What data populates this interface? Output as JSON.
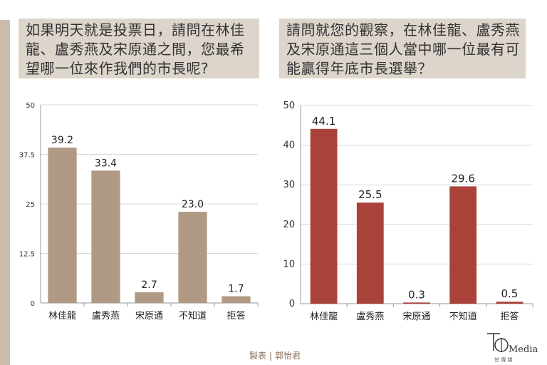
{
  "questions": {
    "q1": "如果明天就是投票日，請問在林佳龍、盧秀燕及宋原通之間，您最希望哪一位來作我們的市長呢?",
    "q2": "請問就您的觀察，在林佳龍、盧秀燕及宋原通這三個人當中哪一位最有可能贏得年底市長選舉？"
  },
  "chart_data": [
    {
      "type": "bar",
      "categories": [
        "林佳龍",
        "盧秀燕",
        "宋原通",
        "不知道",
        "拒答"
      ],
      "values": [
        39.2,
        33.4,
        2.7,
        23.0,
        1.7
      ],
      "value_labels": [
        "39.2",
        "33.4",
        "2.7",
        "23.0",
        "1.7"
      ],
      "title": "",
      "xlabel": "",
      "ylabel": "",
      "ylim": [
        0,
        50
      ],
      "yticks": [
        0,
        12.5,
        25,
        37.5,
        50
      ],
      "ytick_labels": [
        "0",
        "12.5",
        "25",
        "37.5",
        "50"
      ],
      "grid": true,
      "legend": "none",
      "color": "#b09a84"
    },
    {
      "type": "bar",
      "categories": [
        "林佳龍",
        "盧秀燕",
        "宋原通",
        "不知道",
        "拒答"
      ],
      "values": [
        44.1,
        25.5,
        0.3,
        29.6,
        0.5
      ],
      "value_labels": [
        "44.1",
        "25.5",
        "0.3",
        "29.6",
        "0.5"
      ],
      "title": "",
      "xlabel": "",
      "ylabel": "",
      "ylim": [
        0,
        50
      ],
      "yticks": [
        0,
        10,
        20,
        30,
        40,
        50
      ],
      "ytick_labels": [
        "0",
        "10",
        "20",
        "30",
        "40",
        "50"
      ],
      "grid": true,
      "legend": "none",
      "color": "#a9433a"
    }
  ],
  "credit": {
    "label": "製表",
    "separator": "|",
    "name": "郭怡君"
  },
  "logo": {
    "text": "Media",
    "sub": "甘 傳 媒"
  },
  "colors": {
    "strip": "#cbbcae",
    "question_bg": "#ddd5cc",
    "grid": "#d9d9d9"
  }
}
